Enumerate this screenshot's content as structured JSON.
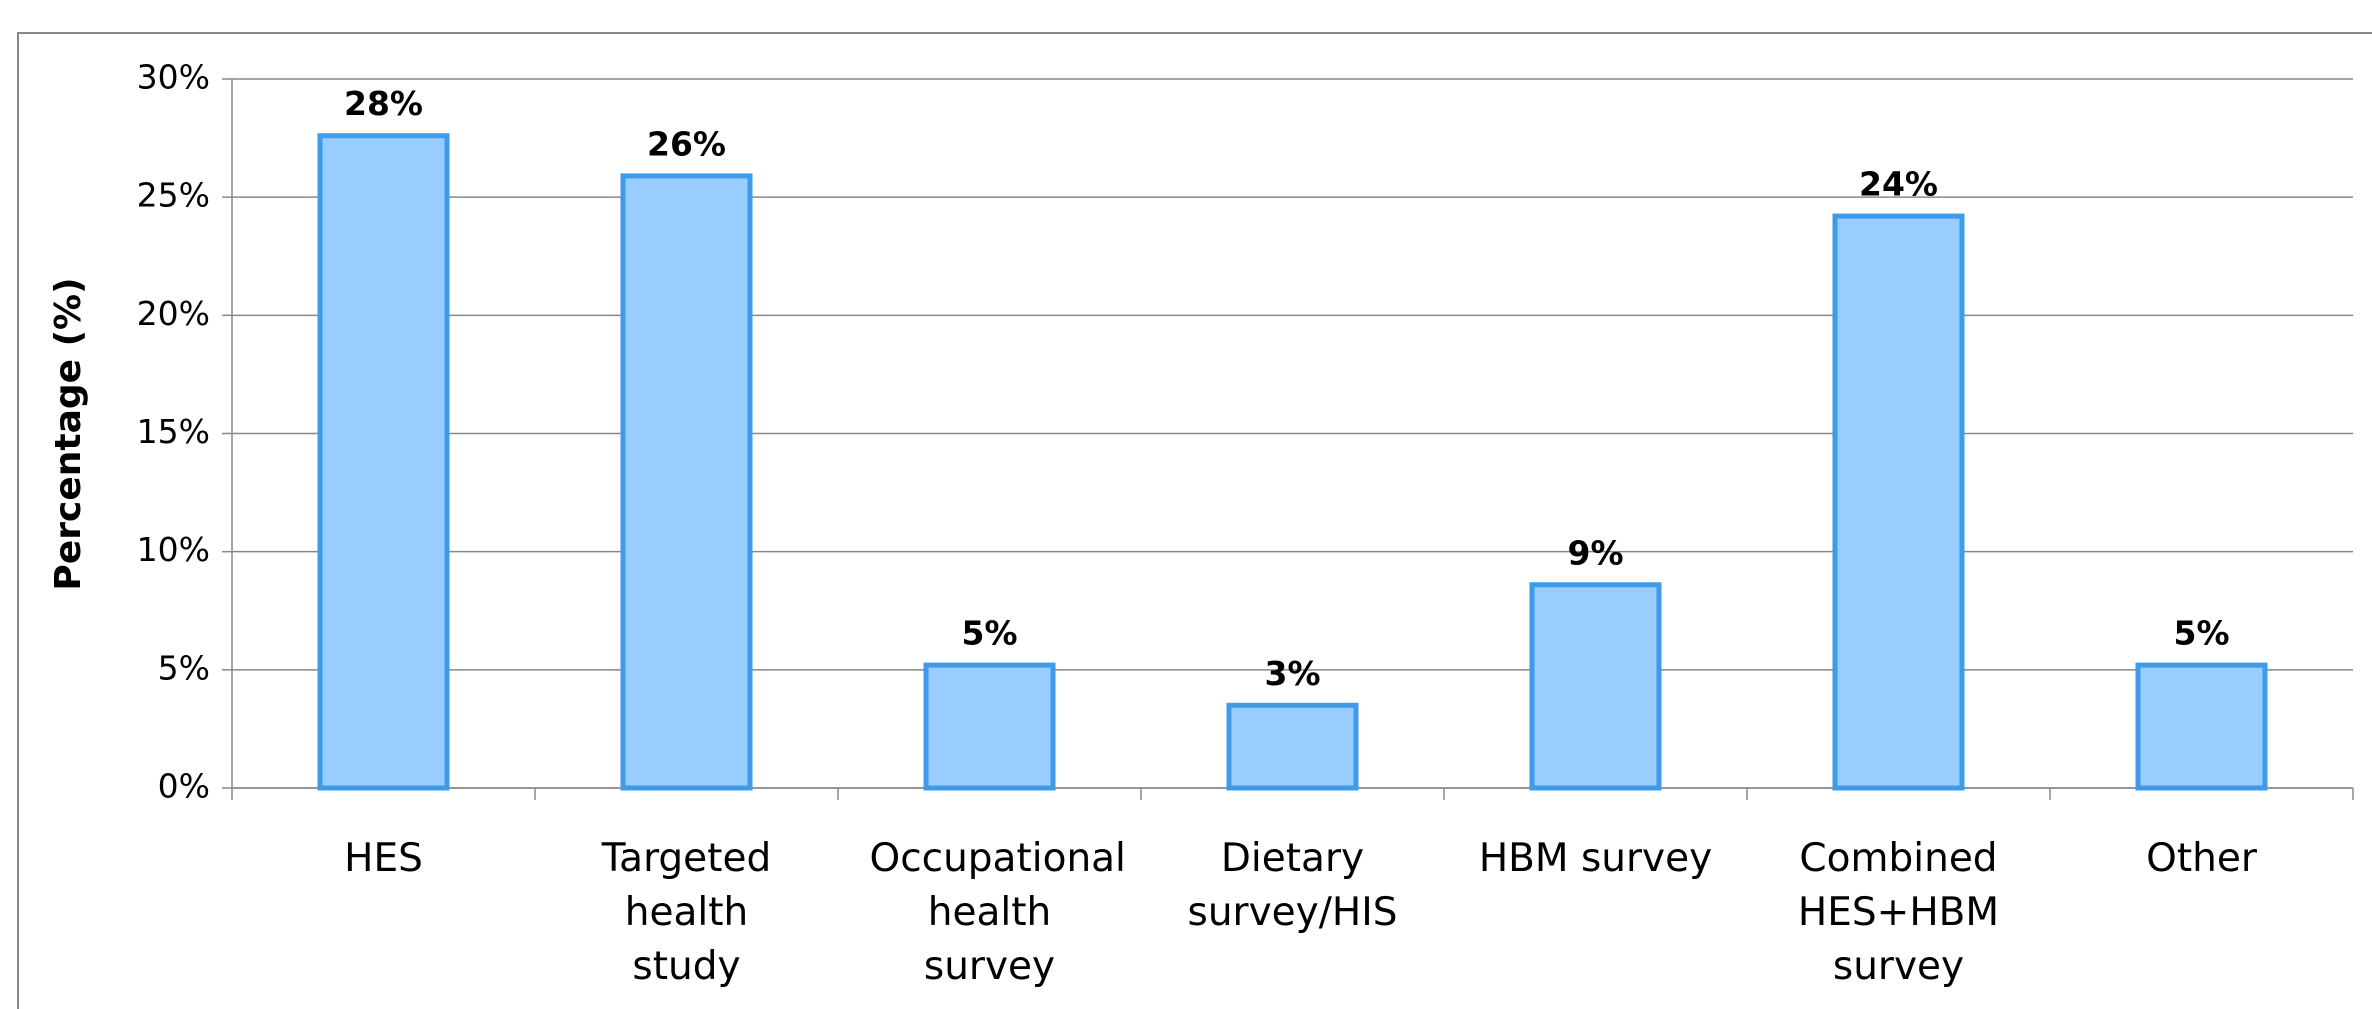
{
  "chart_data": {
    "type": "bar",
    "y_label": "Percentage (%)",
    "categories": [
      "HES",
      "Targeted health study",
      "Occupational health survey",
      "Dietary survey/HIS",
      "HBM survey",
      "Combined HES+HBM survey",
      "Other"
    ],
    "values": [
      27.6,
      25.9,
      5.2,
      3.5,
      8.6,
      24.2,
      5.2
    ],
    "value_labels": [
      "28%",
      "26%",
      "5%",
      "3%",
      "9%",
      "24%",
      "5%"
    ],
    "color": "#99ccff",
    "edge_color": "#3d9be9",
    "ylim": [
      0,
      30
    ],
    "yticks": [
      {
        "value": 0,
        "label": "0%"
      },
      {
        "value": 5,
        "label": "5%"
      },
      {
        "value": 10,
        "label": "10%"
      },
      {
        "value": 15,
        "label": "15%"
      },
      {
        "value": 20,
        "label": "20%"
      },
      {
        "value": 25,
        "label": "25%"
      },
      {
        "value": 30,
        "label": "30%"
      }
    ],
    "grid": true
  }
}
